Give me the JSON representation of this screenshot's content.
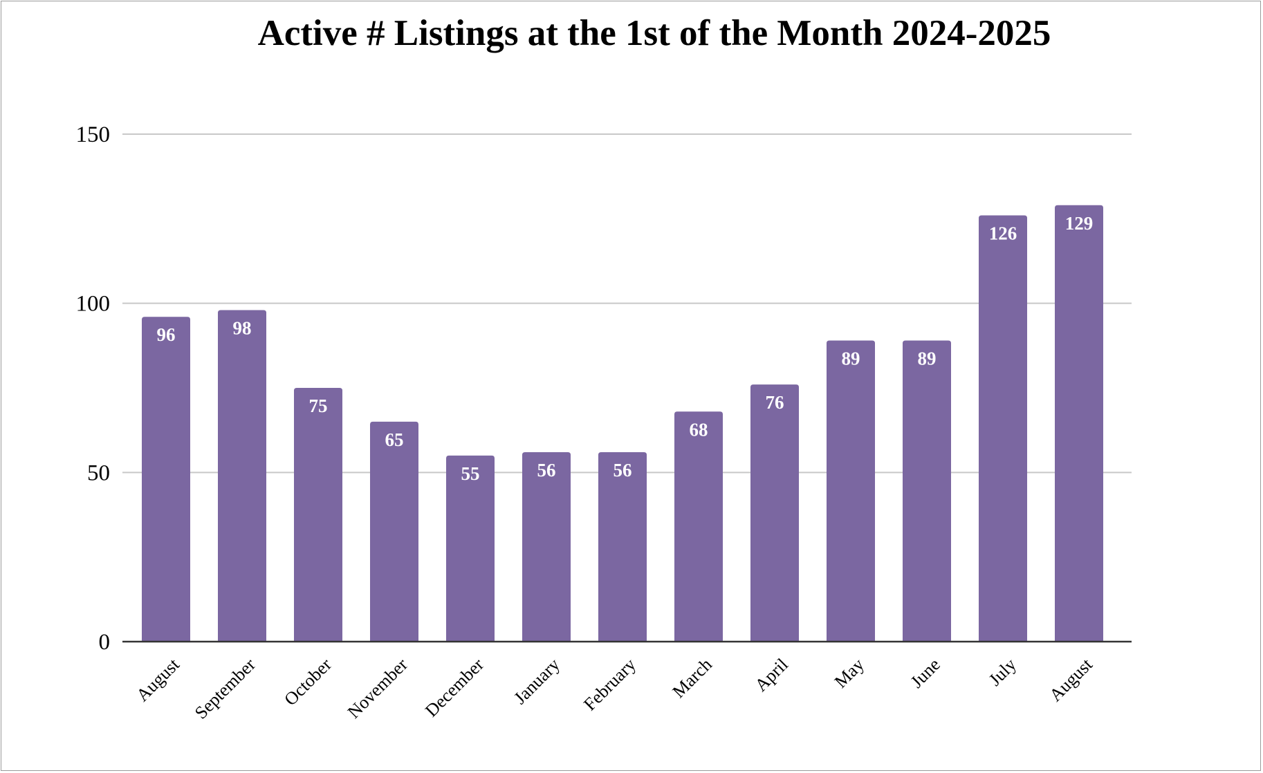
{
  "chart_data": {
    "type": "bar",
    "title": "Active # Listings at the 1st of the Month 2024-2025",
    "xlabel": "",
    "ylabel": "",
    "categories": [
      "August",
      "September",
      "October",
      "November",
      "December",
      "January",
      "February",
      "March",
      "April",
      "May",
      "June",
      "July",
      "August"
    ],
    "values": [
      96,
      98,
      75,
      65,
      55,
      56,
      56,
      68,
      76,
      89,
      89,
      126,
      129
    ],
    "ylim": [
      0,
      150
    ],
    "yticks": [
      0,
      50,
      100,
      150
    ],
    "grid": true,
    "legend": "none",
    "data_labels": true,
    "bar_color": "#7b67a1",
    "gridline_color": "#c8c8c8",
    "axis_color": "#333333"
  }
}
